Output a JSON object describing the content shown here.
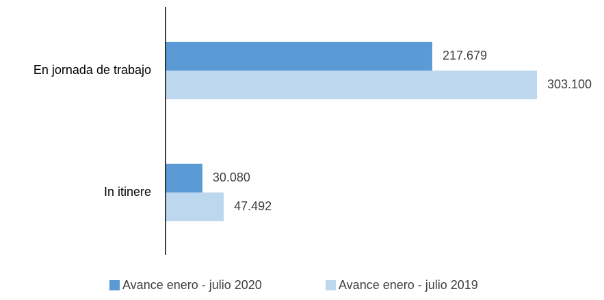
{
  "chart_data": {
    "type": "bar",
    "orientation": "horizontal",
    "title": "",
    "xlabel": "",
    "ylabel": "",
    "categories": [
      "En jornada de trabajo",
      "In itinere"
    ],
    "series": [
      {
        "name": "Avance enero - julio 2020",
        "color": "#5b9bd5",
        "values": [
          217679,
          30080
        ],
        "labels": [
          "217.679",
          "30.080"
        ]
      },
      {
        "name": "Avance enero - julio 2019",
        "color": "#bdd7ee",
        "values": [
          303100,
          47492
        ],
        "labels": [
          "303.100",
          "47.492"
        ]
      }
    ],
    "xlim": [
      0,
      303100
    ],
    "grid": false,
    "legend_position": "bottom"
  }
}
